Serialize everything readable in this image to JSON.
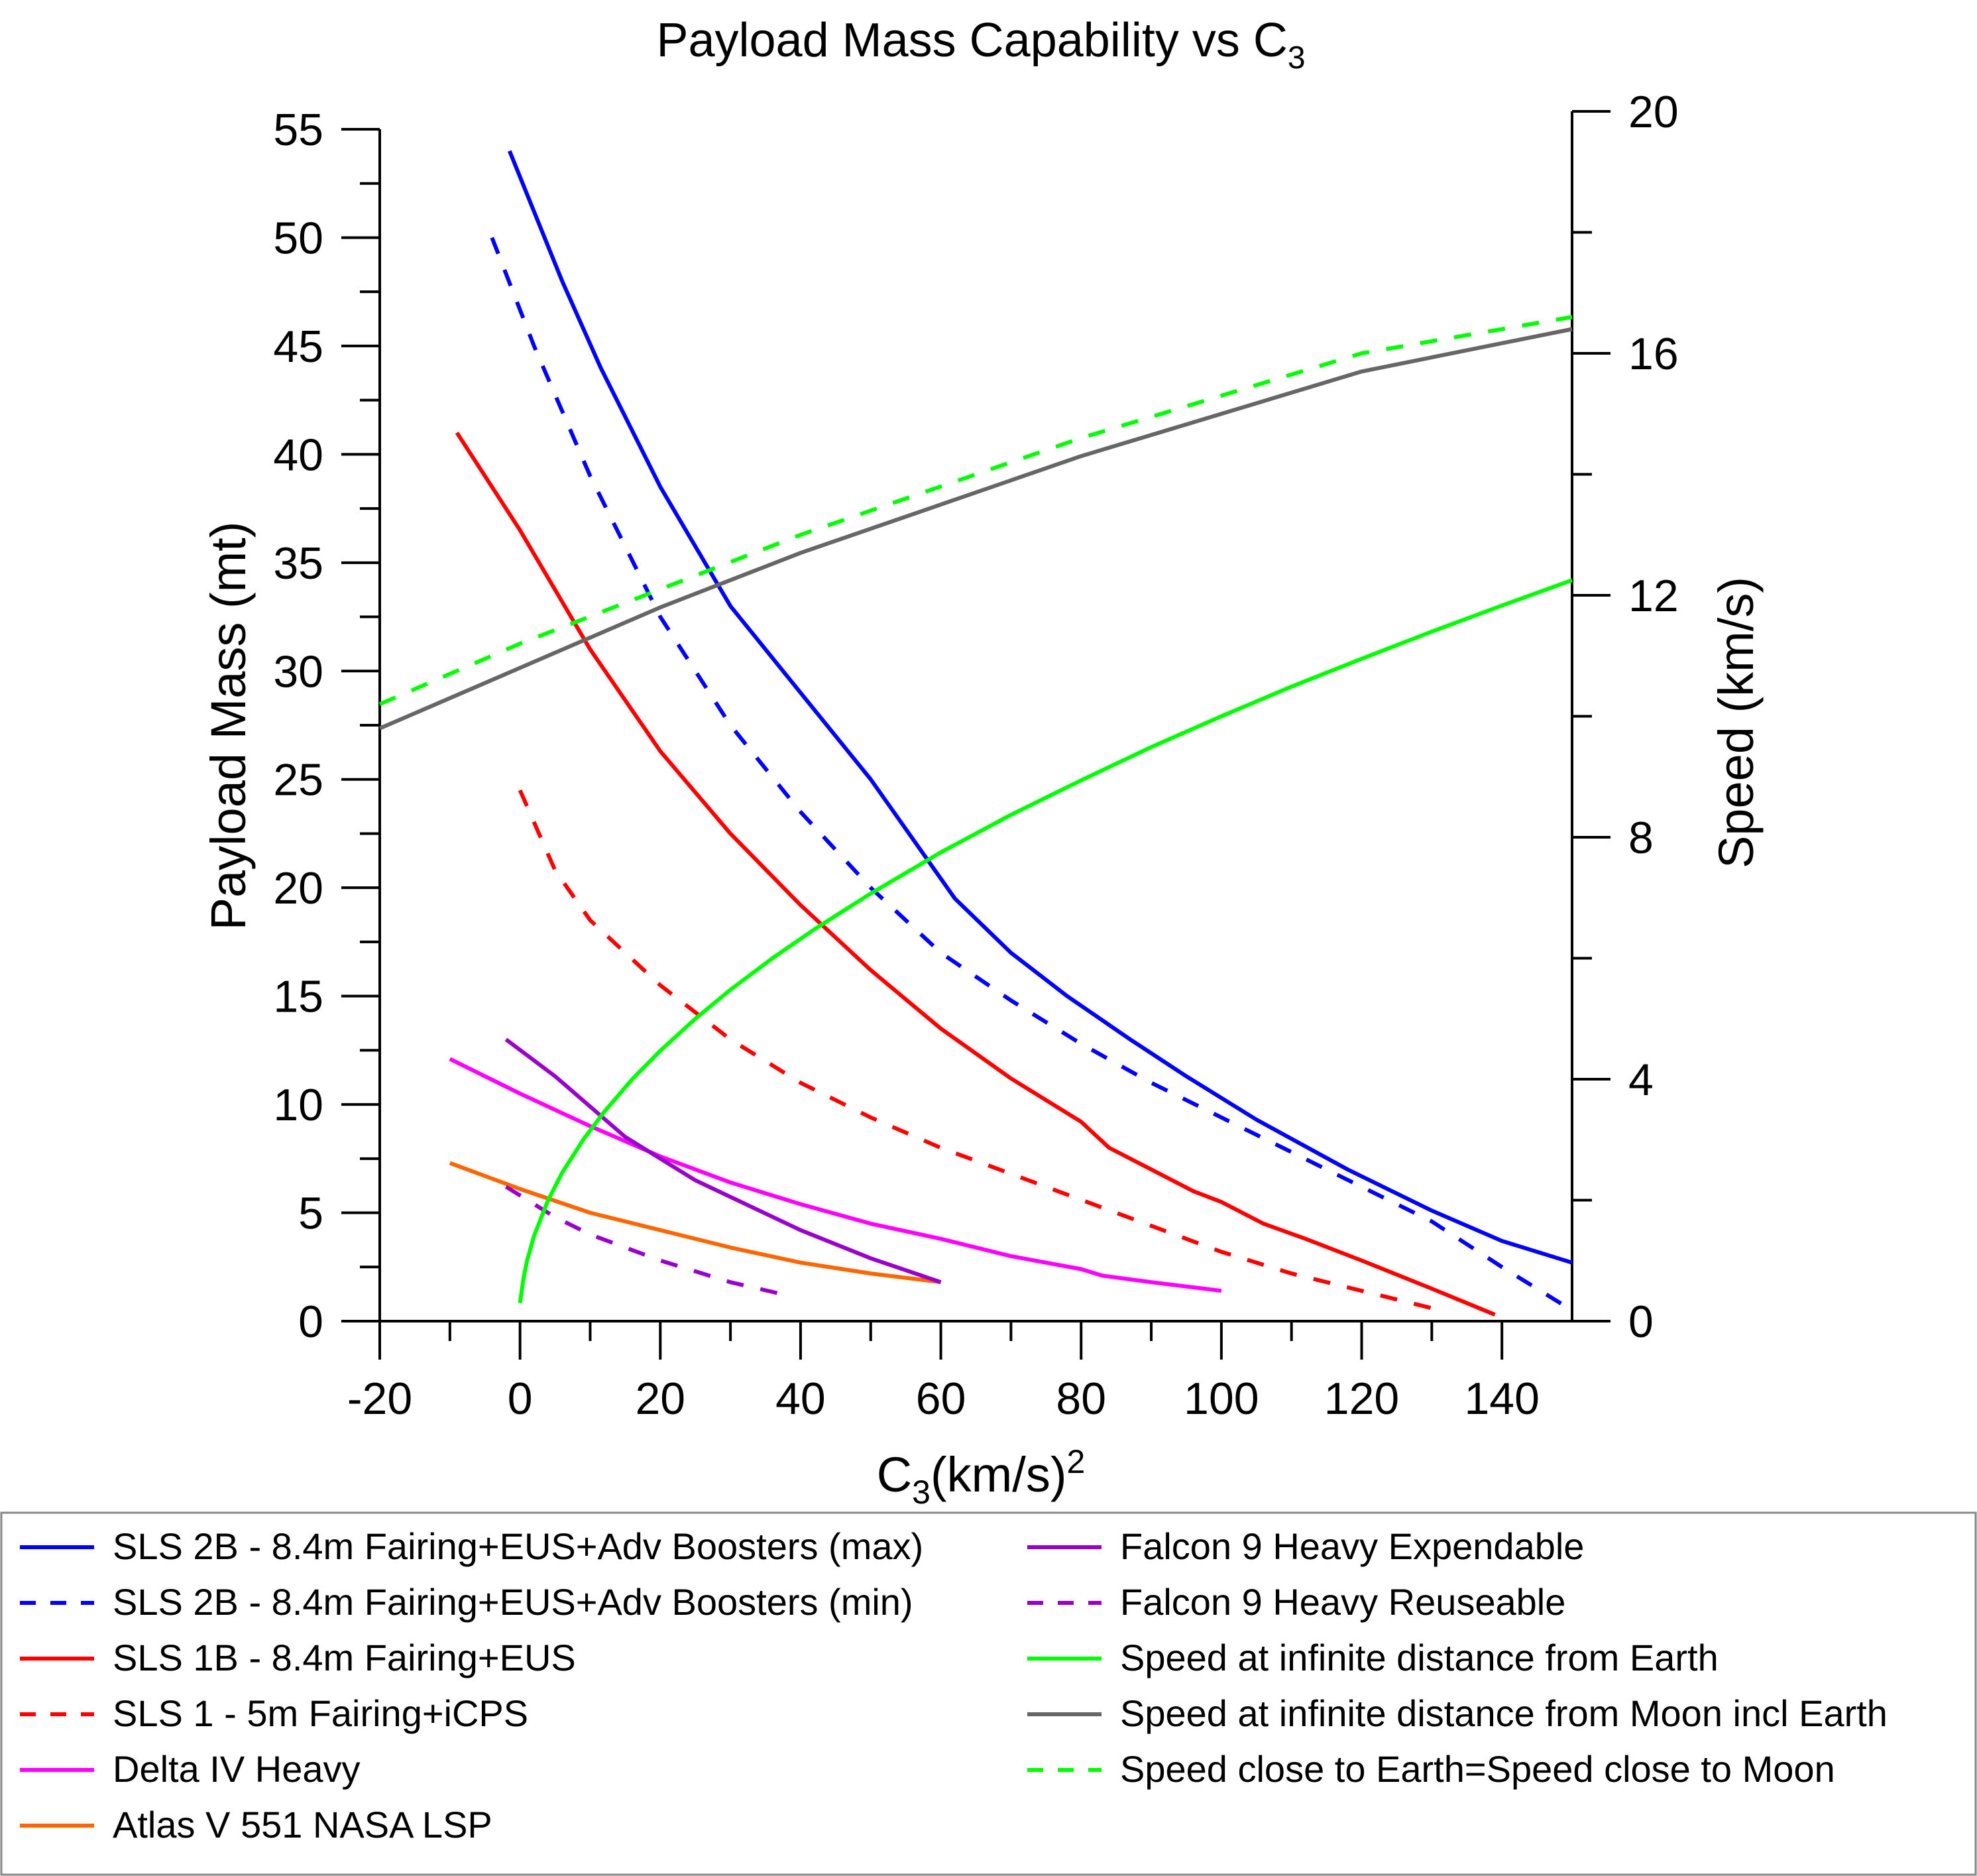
{
  "chart_data": {
    "type": "line",
    "title": "Payload Mass Capability vs C",
    "title_sub": "3",
    "xlabel": "C",
    "xlabel_sub": "3",
    "xlabel_rest": "(km/s)",
    "xlabel_sup": "2",
    "ylabel_left": "Payload Mass (mt)",
    "ylabel_right": "Speed (km/s)",
    "xlim": [
      -20,
      150
    ],
    "ylim_left": [
      0,
      55
    ],
    "ylim_right": [
      0,
      20
    ],
    "x_ticks": [
      -20,
      0,
      20,
      40,
      60,
      80,
      100,
      120,
      140
    ],
    "y_left_ticks": [
      0,
      5,
      10,
      15,
      20,
      25,
      30,
      35,
      40,
      45,
      50,
      55
    ],
    "y_right_ticks": [
      0,
      4,
      8,
      12,
      16,
      20
    ],
    "grid": false,
    "legend_position": "below plot, two columns",
    "series": [
      {
        "name": "SLS 2B - 8.4m Fairing+EUS+Adv Boosters (max)",
        "color": "#0000ff",
        "dash": false,
        "axis": "left",
        "x": [
          -1.5,
          6,
          11.5,
          20,
          30,
          40,
          50,
          62,
          70,
          78,
          87,
          95,
          105,
          118,
          130,
          140,
          150
        ],
        "y": [
          54,
          48,
          44,
          38.5,
          33,
          29,
          25,
          19.5,
          17,
          15,
          13,
          11.3,
          9.3,
          7,
          5.1,
          3.7,
          2.7
        ]
      },
      {
        "name": "SLS 2B - 8.4m Fairing+EUS+Adv Boosters (min)",
        "color": "#0000ff",
        "dash": true,
        "axis": "left",
        "x": [
          -4,
          2,
          10,
          20,
          30,
          40,
          50,
          60,
          70,
          80,
          90,
          100,
          110,
          120,
          130,
          140,
          150
        ],
        "y": [
          50,
          45,
          39,
          32.5,
          27.5,
          23.5,
          20,
          17,
          14.8,
          12.8,
          11,
          9.4,
          7.8,
          6.2,
          4.6,
          2.5,
          0.5
        ]
      },
      {
        "name": "SLS 1B - 8.4m Fairing+EUS",
        "color": "#ff0000",
        "dash": false,
        "axis": "left",
        "x": [
          -9,
          0,
          10,
          20,
          30,
          40,
          50,
          60,
          70,
          80,
          84,
          90,
          96,
          100,
          106,
          112,
          120,
          130,
          139
        ],
        "y": [
          41,
          36.5,
          31,
          26.3,
          22.5,
          19.2,
          16.2,
          13.5,
          11.2,
          9.2,
          8,
          7,
          6,
          5.5,
          4.5,
          3.8,
          2.8,
          1.5,
          0.3
        ]
      },
      {
        "name": "SLS 1 - 5m Fairing+iCPS",
        "color": "#ff0000",
        "dash": true,
        "axis": "left",
        "x": [
          0,
          5,
          10,
          20,
          30,
          40,
          50,
          60,
          70,
          80,
          90,
          100,
          110,
          120,
          130
        ],
        "y": [
          24.5,
          20.8,
          18.5,
          15.5,
          13,
          11,
          9.4,
          8,
          6.8,
          5.6,
          4.4,
          3.2,
          2.2,
          1.4,
          0.6
        ]
      },
      {
        "name": "Delta IV Heavy",
        "color": "#ff00ff",
        "dash": false,
        "axis": "left",
        "x": [
          -10,
          0,
          10,
          20,
          30,
          40,
          50,
          60,
          70,
          80,
          83,
          90,
          100
        ],
        "y": [
          12.1,
          10.5,
          9,
          7.6,
          6.4,
          5.4,
          4.5,
          3.8,
          3,
          2.4,
          2.1,
          1.8,
          1.4
        ]
      },
      {
        "name": "Atlas V 551 NASA LSP",
        "color": "#ff6600",
        "dash": false,
        "axis": "left",
        "x": [
          -10,
          0,
          10,
          20,
          30,
          40,
          50,
          60
        ],
        "y": [
          7.3,
          6.1,
          5,
          4.2,
          3.4,
          2.7,
          2.2,
          1.8
        ]
      },
      {
        "name": "Falcon 9 Heavy Expendable",
        "color": "#9900cc",
        "dash": false,
        "axis": "left",
        "x": [
          -2,
          5,
          15,
          25,
          40,
          50,
          60
        ],
        "y": [
          13,
          11.3,
          8.5,
          6.5,
          4.2,
          2.9,
          1.8
        ]
      },
      {
        "name": "Falcon 9 Heavy Reuseable",
        "color": "#9900cc",
        "dash": true,
        "axis": "left",
        "x": [
          -2,
          5,
          10,
          20,
          30,
          38
        ],
        "y": [
          6.2,
          4.8,
          4,
          2.8,
          1.8,
          1.2
        ]
      },
      {
        "name": "Speed at infinite distance from Earth",
        "color": "#00ff00",
        "dash": false,
        "axis": "right",
        "x": [
          0,
          0.5,
          1,
          2,
          4,
          6,
          9,
          12,
          16,
          20,
          25,
          30,
          36,
          42,
          50,
          60,
          70,
          80,
          90,
          100,
          110,
          120,
          130,
          140,
          150
        ],
        "y": [
          0.3,
          0.71,
          1,
          1.41,
          2,
          2.45,
          3,
          3.46,
          4,
          4.47,
          5,
          5.48,
          6,
          6.48,
          7.07,
          7.75,
          8.37,
          8.94,
          9.49,
          10,
          10.49,
          10.95,
          11.4,
          11.83,
          12.25
        ]
      },
      {
        "name": "Speed at infinite distance from Moon incl Earth",
        "color": "#666666",
        "dash": false,
        "axis": "right",
        "x": [
          -20,
          0,
          20,
          40,
          60,
          80,
          100,
          120,
          150
        ],
        "y": [
          9.8,
          10.8,
          11.8,
          12.7,
          13.5,
          14.3,
          15.0,
          15.7,
          16.4
        ]
      },
      {
        "name": "Speed close to Earth=Speed close to Moon",
        "color": "#00ff00",
        "dash": true,
        "axis": "right",
        "x": [
          -20,
          0,
          20,
          40,
          60,
          80,
          100,
          120,
          150
        ],
        "y": [
          10.2,
          11.2,
          12.1,
          13.0,
          13.8,
          14.6,
          15.3,
          16.0,
          16.6
        ]
      }
    ]
  }
}
